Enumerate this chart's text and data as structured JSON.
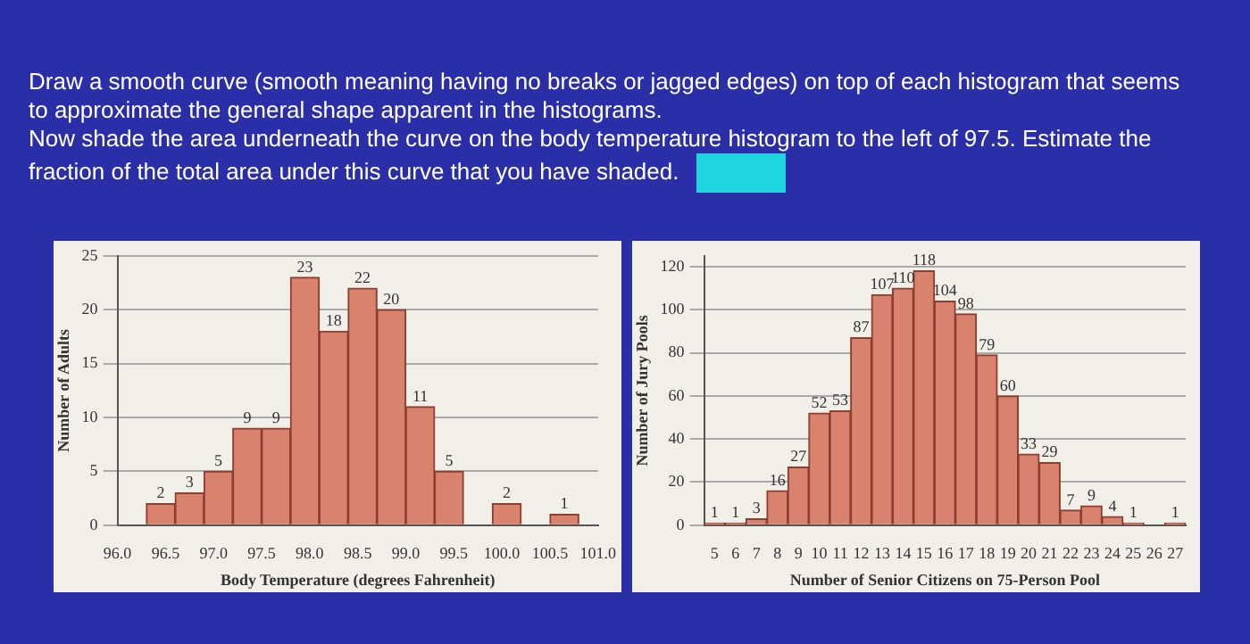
{
  "chart_data": [
    {
      "type": "other",
      "annotations": [
        "Draw a smooth curve (smooth meaning having no breaks or jagged edges) on top of each histogram that seems to approximate the general shape apparent in the histograms.",
        "Now shade the area underneath the curve on the body temperature histogram to the left of 97.5. Estimate the fraction of the total area under this curve that you have shaded."
      ]
    },
    {
      "type": "histogram",
      "xlabel": "Body Temperature (degrees Fahrenheit)",
      "ylabel": "Number of Adults",
      "color": "#d9826e",
      "bins": [
        96.3,
        96.6,
        96.9,
        97.2,
        97.5,
        97.8,
        98.1,
        98.4,
        98.7,
        99.0,
        99.3,
        99.6,
        99.9,
        100.2,
        100.5,
        100.8
      ],
      "values": [
        2,
        3,
        5,
        9,
        9,
        23,
        18,
        22,
        20,
        11,
        5,
        0,
        2,
        0,
        1
      ],
      "value_labels": [
        "2",
        "3",
        "5",
        "9",
        "9",
        "23",
        "18",
        "22",
        "20",
        "11",
        "5",
        null,
        "2",
        null,
        "1"
      ],
      "xlim": [
        96.0,
        101.0
      ],
      "xticks": [
        {
          "value": 96,
          "label": "96.0"
        },
        96.5,
        {
          "value": 97,
          "label": "97.0"
        },
        97.5,
        {
          "value": 98,
          "label": "98.0"
        },
        98.5,
        {
          "value": 99,
          "label": "99.0"
        },
        99.5,
        {
          "value": 100,
          "label": "100.0"
        },
        100.5,
        {
          "value": 101,
          "label": "101.0"
        }
      ],
      "ylim": [
        0,
        25
      ],
      "yticks": [
        0,
        5,
        10,
        15,
        20,
        25
      ],
      "grid": "y"
    },
    {
      "type": "histogram",
      "xlabel": "Number of Senior Citizens on 75-Person Pool",
      "ylabel": "Number of Jury Pools",
      "color": "#d9826e",
      "bins": [
        4.5,
        5.5,
        6.5,
        7.5,
        8.5,
        9.5,
        10.5,
        11.5,
        12.5,
        13.5,
        14.5,
        15.5,
        16.5,
        17.5,
        18.5,
        19.5,
        20.5,
        21.5,
        22.5,
        23.5,
        24.5,
        25.5,
        26.5,
        27.5
      ],
      "values": [
        1,
        1,
        3,
        16,
        27,
        52,
        53,
        87,
        107,
        110,
        118,
        104,
        98,
        79,
        60,
        33,
        29,
        7,
        9,
        4,
        1,
        0,
        1
      ],
      "value_labels": [
        "1",
        "1",
        "3",
        "16",
        "27",
        "52",
        "53",
        "87",
        "107",
        "110",
        "118",
        "104",
        "98",
        "79",
        "60",
        "33",
        "29",
        "7",
        "9",
        "4",
        "1",
        null,
        "1"
      ],
      "xlim": [
        4.5,
        27.5
      ],
      "xticks": [
        5,
        6,
        7,
        8,
        9,
        10,
        11,
        12,
        13,
        14,
        15,
        16,
        17,
        18,
        19,
        20,
        21,
        22,
        23,
        24,
        25,
        26,
        27
      ],
      "ylim": [
        0,
        125
      ],
      "yticks": [
        0,
        20,
        40,
        60,
        80,
        100,
        120
      ],
      "grid": "y"
    }
  ]
}
